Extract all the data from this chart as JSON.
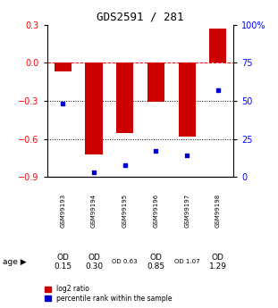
{
  "title": "GDS2591 / 281",
  "samples": [
    "GSM99193",
    "GSM99194",
    "GSM99195",
    "GSM99196",
    "GSM99197",
    "GSM99198"
  ],
  "log2_ratio": [
    -0.07,
    -0.72,
    -0.55,
    -0.31,
    -0.58,
    0.27
  ],
  "percentile_rank": [
    48,
    3,
    8,
    17,
    14,
    57
  ],
  "ylim_left": [
    -0.9,
    0.3
  ],
  "ylim_right": [
    0,
    100
  ],
  "y_ticks_left": [
    -0.9,
    -0.6,
    -0.3,
    0.0,
    0.3
  ],
  "y_ticks_right": [
    0,
    25,
    50,
    75,
    100
  ],
  "hlines": [
    0.0,
    -0.3,
    -0.6
  ],
  "bar_color": "#cc0000",
  "dot_color": "#0000cc",
  "age_labels": [
    "OD\n0.15",
    "OD\n0.30",
    "OD 0.63",
    "OD\n0.85",
    "OD 1.07",
    "OD\n1.29"
  ],
  "age_fontsize_large": [
    true,
    true,
    false,
    true,
    false,
    true
  ],
  "age_bg_colors": [
    "#d0d0d0",
    "#d0d0d0",
    "#c8f0c8",
    "#a8e8a8",
    "#80d080",
    "#50c050"
  ],
  "sample_bg_color": "#c8c8c8",
  "legend_items": [
    "log2 ratio",
    "percentile rank within the sample"
  ],
  "legend_colors": [
    "#cc0000",
    "#0000cc"
  ],
  "bar_width": 0.55
}
